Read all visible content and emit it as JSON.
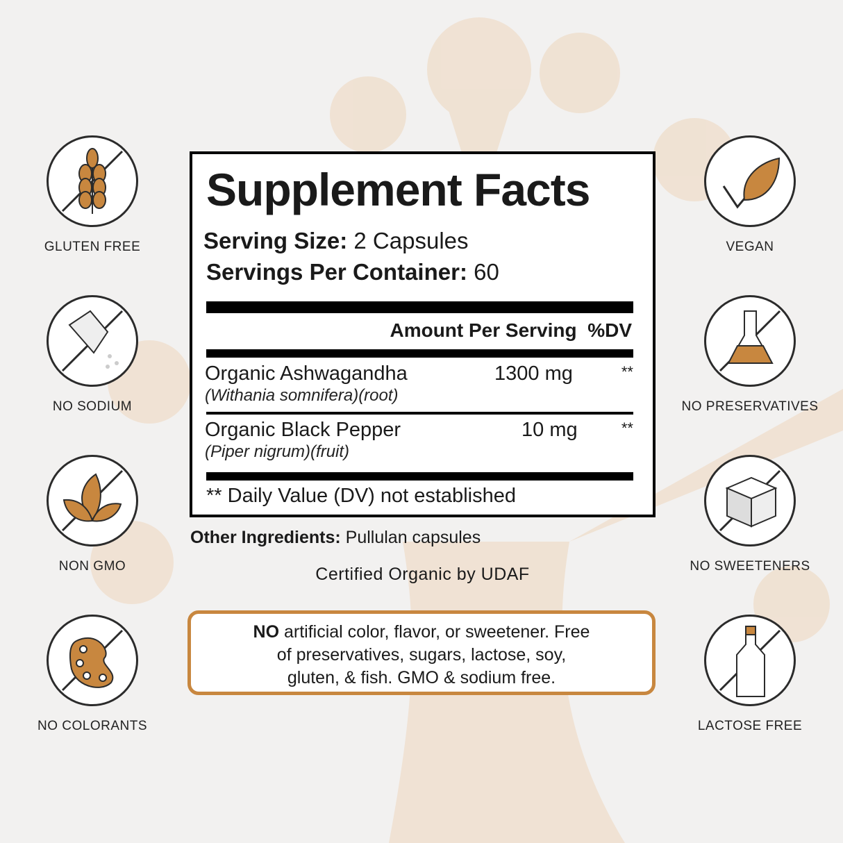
{
  "colors": {
    "accent": "#c8873f",
    "outline": "#2b2b2b"
  },
  "left_badges": [
    {
      "label": "GLUTEN FREE",
      "icon": "wheat-icon"
    },
    {
      "label": "NO SODIUM",
      "icon": "salt-shaker-icon"
    },
    {
      "label": "NON GMO",
      "icon": "leaves-icon"
    },
    {
      "label": "NO COLORANTS",
      "icon": "palette-icon"
    }
  ],
  "right_badges": [
    {
      "label": "VEGAN",
      "icon": "leaf-check-icon"
    },
    {
      "label": "NO PRESERVATIVES",
      "icon": "flask-icon"
    },
    {
      "label": "NO SWEETENERS",
      "icon": "sugar-cube-icon"
    },
    {
      "label": "LACTOSE FREE",
      "icon": "milk-bottle-icon"
    }
  ],
  "facts": {
    "title": "Supplement Facts",
    "serving_size_label": "Serving Size:",
    "serving_size": "2 Capsules",
    "servings_label": "Servings Per Container:",
    "servings": "60",
    "amount_header": "Amount Per Serving",
    "dv_header": "%DV",
    "ingredients": [
      {
        "name": "Organic Ashwagandha",
        "latin": "(Withania somnifera)(root)",
        "amount": "1300 mg",
        "dv": "**"
      },
      {
        "name": "Organic Black Pepper",
        "latin": "(Piper nigrum)(fruit)",
        "amount": "10 mg",
        "dv": "**"
      }
    ],
    "footnote": "** Daily Value (DV) not established"
  },
  "other_label": "Other Ingredients:",
  "other_value": "Pullulan capsules",
  "certified": "Certified Organic by UDAF",
  "no_bold": "NO",
  "no_text_1": " artificial color, flavor, or sweetener. Free",
  "no_text_2": "of preservatives, sugars, lactose, soy,",
  "no_text_3": "gluten, & fish. GMO & sodium free."
}
